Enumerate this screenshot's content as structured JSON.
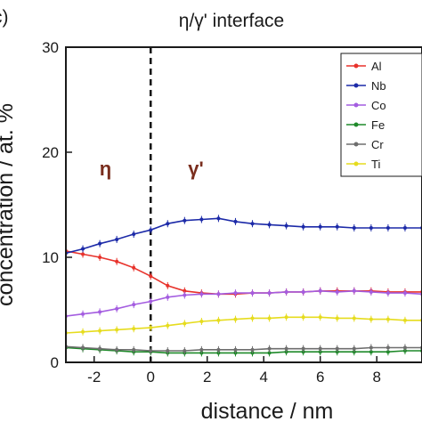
{
  "panel_label": "c)",
  "chart_data": {
    "type": "line",
    "title": "η/γ' interface",
    "xlabel": "distance / nm",
    "ylabel": "concentration / at. %",
    "xlim": [
      -3,
      9.6
    ],
    "ylim": [
      0,
      30
    ],
    "xticks": [
      -2,
      0,
      2,
      4,
      6,
      8
    ],
    "yticks": [
      0,
      10,
      20,
      30
    ],
    "grid": false,
    "legend_position": "top-right",
    "interface_x": 0,
    "regions": [
      {
        "label": "η",
        "x": -1.6,
        "y": 17.8
      },
      {
        "label": "γ'",
        "x": 1.6,
        "y": 17.8
      }
    ],
    "series": [
      {
        "name": "Al",
        "color": "#e8322b",
        "x": [
          -3.0,
          -2.4,
          -1.8,
          -1.2,
          -0.6,
          0.0,
          0.6,
          1.2,
          1.8,
          2.4,
          3.0,
          3.6,
          4.2,
          4.8,
          5.4,
          6.0,
          6.6,
          7.2,
          7.8,
          8.4,
          9.0,
          9.6
        ],
        "y": [
          10.6,
          10.3,
          10.0,
          9.6,
          9.0,
          8.2,
          7.3,
          6.8,
          6.6,
          6.5,
          6.5,
          6.6,
          6.6,
          6.7,
          6.7,
          6.8,
          6.8,
          6.8,
          6.8,
          6.7,
          6.7,
          6.7
        ]
      },
      {
        "name": "Nb",
        "color": "#1c2aa8",
        "x": [
          -3.0,
          -2.4,
          -1.8,
          -1.2,
          -0.6,
          0.0,
          0.6,
          1.2,
          1.8,
          2.4,
          3.0,
          3.6,
          4.2,
          4.8,
          5.4,
          6.0,
          6.6,
          7.2,
          7.8,
          8.4,
          9.0,
          9.6
        ],
        "y": [
          10.4,
          10.8,
          11.3,
          11.7,
          12.2,
          12.6,
          13.2,
          13.5,
          13.6,
          13.7,
          13.4,
          13.2,
          13.1,
          13.0,
          12.9,
          12.9,
          12.9,
          12.8,
          12.8,
          12.8,
          12.8,
          12.8
        ]
      },
      {
        "name": "Co",
        "color": "#a45de0",
        "x": [
          -3.0,
          -2.4,
          -1.8,
          -1.2,
          -0.6,
          0.0,
          0.6,
          1.2,
          1.8,
          2.4,
          3.0,
          3.6,
          4.2,
          4.8,
          5.4,
          6.0,
          6.6,
          7.2,
          7.8,
          8.4,
          9.0,
          9.6
        ],
        "y": [
          4.4,
          4.6,
          4.8,
          5.1,
          5.5,
          5.8,
          6.2,
          6.4,
          6.5,
          6.5,
          6.6,
          6.6,
          6.6,
          6.7,
          6.7,
          6.8,
          6.7,
          6.8,
          6.7,
          6.6,
          6.6,
          6.5
        ]
      },
      {
        "name": "Fe",
        "color": "#1f8a2a",
        "x": [
          -3.0,
          -2.4,
          -1.8,
          -1.2,
          -0.6,
          0.0,
          0.6,
          1.2,
          1.8,
          2.4,
          3.0,
          3.6,
          4.2,
          4.8,
          5.4,
          6.0,
          6.6,
          7.2,
          7.8,
          8.4,
          9.0,
          9.6
        ],
        "y": [
          1.4,
          1.3,
          1.2,
          1.1,
          1.0,
          1.0,
          0.9,
          0.9,
          0.9,
          0.9,
          0.9,
          0.9,
          0.9,
          1.0,
          1.0,
          1.0,
          1.0,
          1.0,
          1.0,
          1.0,
          1.1,
          1.1
        ]
      },
      {
        "name": "Cr",
        "color": "#6e6e6e",
        "x": [
          -3.0,
          -2.4,
          -1.8,
          -1.2,
          -0.6,
          0.0,
          0.6,
          1.2,
          1.8,
          2.4,
          3.0,
          3.6,
          4.2,
          4.8,
          5.4,
          6.0,
          6.6,
          7.2,
          7.8,
          8.4,
          9.0,
          9.6
        ],
        "y": [
          1.5,
          1.4,
          1.3,
          1.2,
          1.2,
          1.1,
          1.1,
          1.1,
          1.2,
          1.2,
          1.2,
          1.2,
          1.3,
          1.3,
          1.3,
          1.3,
          1.3,
          1.3,
          1.4,
          1.4,
          1.4,
          1.4
        ]
      },
      {
        "name": "Ti",
        "color": "#e6dc1e",
        "x": [
          -3.0,
          -2.4,
          -1.8,
          -1.2,
          -0.6,
          0.0,
          0.6,
          1.2,
          1.8,
          2.4,
          3.0,
          3.6,
          4.2,
          4.8,
          5.4,
          6.0,
          6.6,
          7.2,
          7.8,
          8.4,
          9.0,
          9.6
        ],
        "y": [
          2.8,
          2.9,
          3.0,
          3.1,
          3.2,
          3.3,
          3.5,
          3.7,
          3.9,
          4.0,
          4.1,
          4.2,
          4.2,
          4.3,
          4.3,
          4.3,
          4.2,
          4.2,
          4.1,
          4.1,
          4.0,
          4.0
        ]
      }
    ]
  }
}
